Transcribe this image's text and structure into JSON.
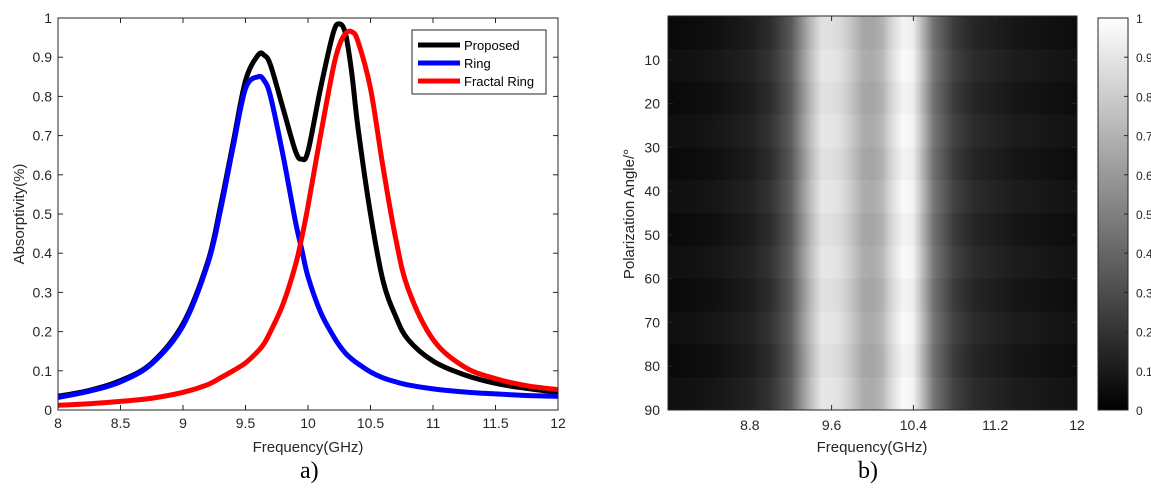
{
  "panels": {
    "a": {
      "label": "a)"
    },
    "b": {
      "label": "b)"
    }
  },
  "chart_data": [
    {
      "type": "line",
      "xlabel": "Frequency(GHz)",
      "ylabel": "Absorptivity(%)",
      "xlim": [
        8,
        12
      ],
      "ylim": [
        0,
        1
      ],
      "xticks": [
        8,
        8.5,
        9,
        9.5,
        10,
        10.5,
        11,
        11.5,
        12
      ],
      "xtick_labels": [
        "8",
        "8.5",
        "9",
        "9.5",
        "10",
        "10.5",
        "11",
        "11.5",
        "12"
      ],
      "yticks": [
        0,
        0.1,
        0.2,
        0.3,
        0.4,
        0.5,
        0.6,
        0.7,
        0.8,
        0.9,
        1
      ],
      "ytick_labels": [
        "0",
        "0.1",
        "0.2",
        "0.3",
        "0.4",
        "0.5",
        "0.6",
        "0.7",
        "0.8",
        "0.9",
        "1"
      ],
      "grid": false,
      "legend_position": "top-right",
      "x": [
        8.0,
        8.25,
        8.5,
        8.75,
        9.0,
        9.2,
        9.3,
        9.4,
        9.5,
        9.6,
        9.65,
        9.7,
        9.8,
        9.9,
        9.95,
        10.0,
        10.1,
        10.2,
        10.25,
        10.3,
        10.35,
        10.4,
        10.5,
        10.6,
        10.7,
        10.8,
        11.0,
        11.25,
        11.5,
        11.75,
        12.0
      ],
      "series": [
        {
          "name": "Proposed",
          "color": "#000000",
          "values": [
            0.035,
            0.05,
            0.075,
            0.12,
            0.22,
            0.38,
            0.52,
            0.68,
            0.84,
            0.905,
            0.905,
            0.88,
            0.77,
            0.66,
            0.64,
            0.66,
            0.82,
            0.96,
            0.985,
            0.96,
            0.86,
            0.72,
            0.5,
            0.33,
            0.24,
            0.18,
            0.125,
            0.09,
            0.068,
            0.055,
            0.045
          ]
        },
        {
          "name": "Ring",
          "color": "#0000ff",
          "values": [
            0.032,
            0.048,
            0.072,
            0.118,
            0.215,
            0.375,
            0.51,
            0.67,
            0.82,
            0.85,
            0.84,
            0.8,
            0.65,
            0.48,
            0.41,
            0.34,
            0.25,
            0.19,
            0.165,
            0.145,
            0.13,
            0.118,
            0.097,
            0.082,
            0.072,
            0.064,
            0.054,
            0.046,
            0.041,
            0.037,
            0.035
          ]
        },
        {
          "name": "Fractal Ring",
          "color": "#ff0000",
          "values": [
            0.012,
            0.016,
            0.022,
            0.03,
            0.045,
            0.065,
            0.082,
            0.1,
            0.12,
            0.15,
            0.17,
            0.2,
            0.27,
            0.37,
            0.44,
            0.52,
            0.7,
            0.87,
            0.93,
            0.96,
            0.965,
            0.94,
            0.82,
            0.62,
            0.44,
            0.31,
            0.18,
            0.11,
            0.08,
            0.062,
            0.052
          ]
        }
      ]
    },
    {
      "type": "heatmap",
      "xlabel": "Frequency(GHz)",
      "ylabel": "Polarization Angle/°",
      "xlim": [
        8,
        12
      ],
      "ylim": [
        0,
        90
      ],
      "y_direction": "down",
      "xticks": [
        8.8,
        9.6,
        10.4,
        11.2,
        12
      ],
      "xtick_labels": [
        "8.8",
        "9.6",
        "10.4",
        "11.2",
        "12"
      ],
      "yticks": [
        10,
        20,
        30,
        40,
        50,
        60,
        70,
        80,
        90
      ],
      "ytick_labels": [
        "10",
        "20",
        "30",
        "40",
        "50",
        "60",
        "70",
        "80",
        "90"
      ],
      "colormap": "gray",
      "colorbar": {
        "range": [
          0,
          1
        ],
        "ticks": [
          0,
          0.1,
          0.2,
          0.3,
          0.4,
          0.5,
          0.6,
          0.7,
          0.8,
          0.9,
          1
        ],
        "tick_labels": [
          "0",
          "0.1",
          "0.2",
          "0.3",
          "0.4",
          "0.5",
          "0.6",
          "0.7",
          "0.8",
          "0.9",
          "1"
        ]
      },
      "frequency_profile": {
        "x": [
          8.0,
          8.4,
          8.8,
          9.0,
          9.2,
          9.3,
          9.4,
          9.5,
          9.6,
          9.7,
          9.8,
          9.9,
          10.0,
          10.1,
          10.2,
          10.3,
          10.4,
          10.5,
          10.6,
          10.8,
          11.0,
          11.4,
          12.0
        ],
        "values": [
          0.04,
          0.06,
          0.11,
          0.18,
          0.35,
          0.55,
          0.75,
          0.9,
          0.9,
          0.87,
          0.78,
          0.68,
          0.66,
          0.72,
          0.88,
          0.98,
          0.95,
          0.7,
          0.45,
          0.24,
          0.15,
          0.09,
          0.05
        ]
      }
    }
  ]
}
